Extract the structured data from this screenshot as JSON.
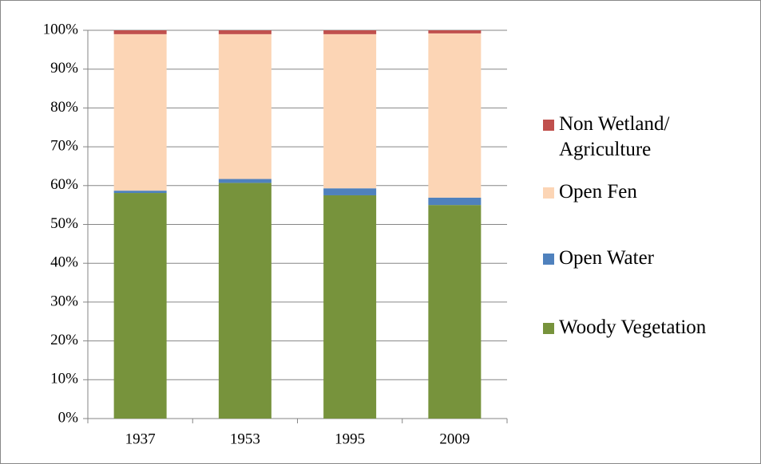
{
  "chart_data": {
    "type": "stacked_bar",
    "categories": [
      "1937",
      "1953",
      "1995",
      "2009"
    ],
    "series": [
      {
        "name": "Woody Vegetation",
        "color": "#77933c",
        "values": [
          58.1,
          60.7,
          57.5,
          55.0
        ]
      },
      {
        "name": "Open Water",
        "color": "#4f81bd",
        "values": [
          0.6,
          1.0,
          1.8,
          1.9
        ]
      },
      {
        "name": "Open Fen",
        "color": "#fcd5b5",
        "values": [
          40.3,
          37.3,
          39.7,
          42.3
        ]
      },
      {
        "name": "Non Wetland/ Agriculture",
        "color": "#c0504d",
        "values": [
          1.0,
          1.0,
          1.0,
          0.8
        ]
      }
    ],
    "ylim": [
      0,
      100
    ],
    "yticks": [
      {
        "value": 0,
        "label": "0%"
      },
      {
        "value": 10,
        "label": "10%"
      },
      {
        "value": 20,
        "label": "20%"
      },
      {
        "value": 30,
        "label": "30%"
      },
      {
        "value": 40,
        "label": "40%"
      },
      {
        "value": 50,
        "label": "50%"
      },
      {
        "value": 60,
        "label": "60%"
      },
      {
        "value": 70,
        "label": "70%"
      },
      {
        "value": 80,
        "label": "80%"
      },
      {
        "value": 90,
        "label": "90%"
      },
      {
        "value": 100,
        "label": "100%"
      }
    ],
    "grid": true
  }
}
